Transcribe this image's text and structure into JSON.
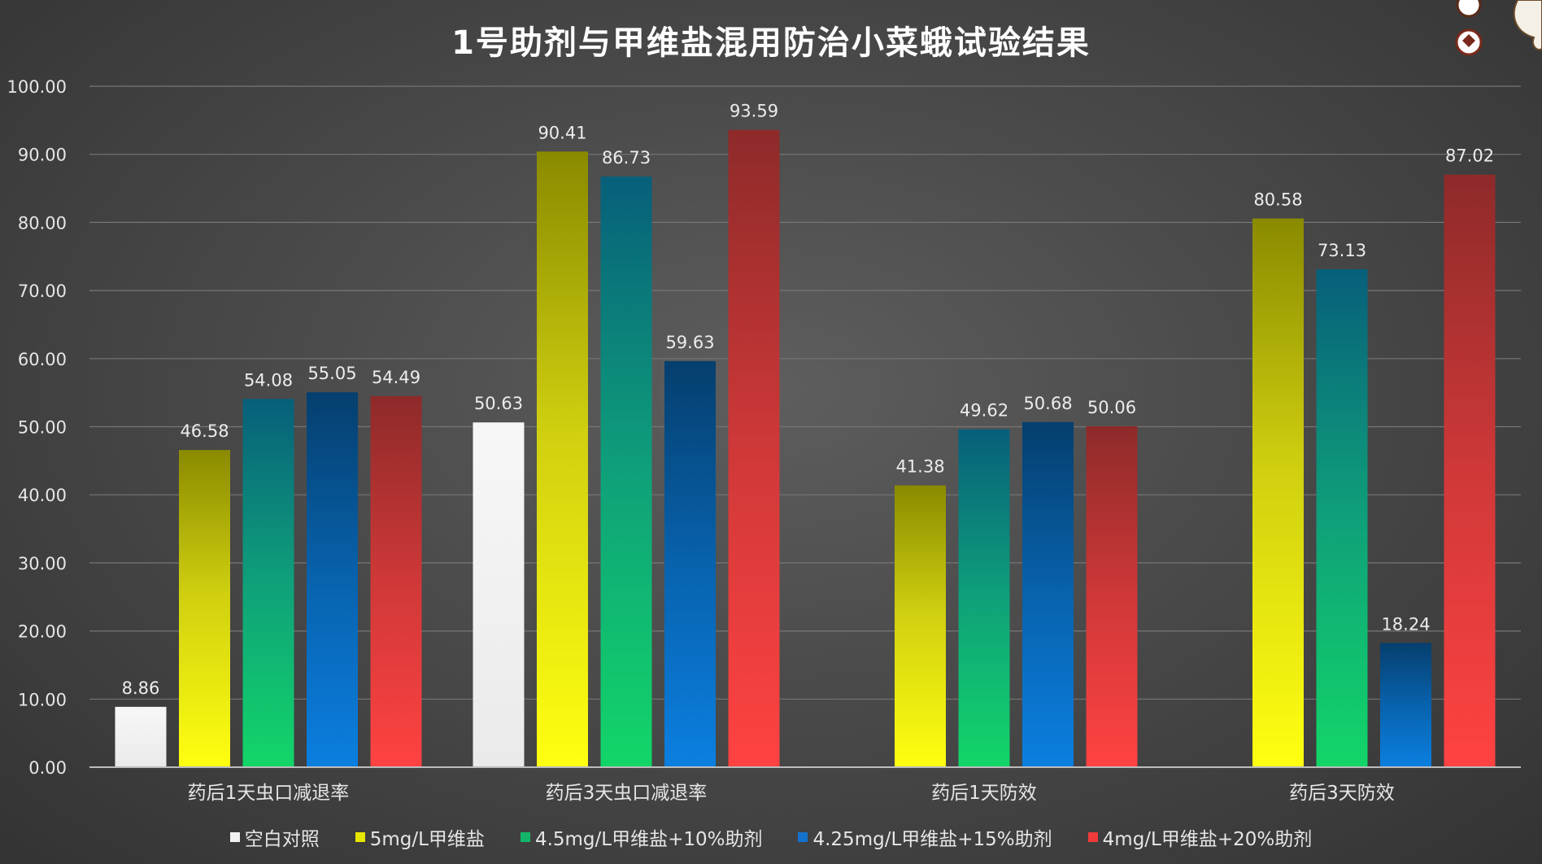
{
  "chart_data": {
    "type": "bar",
    "title": "1号助剂与甲维盐混用防治小菜蛾试验结果",
    "xlabel": "",
    "ylabel": "",
    "ylim": [
      0,
      100
    ],
    "yticks": [
      "0.00",
      "10.00",
      "20.00",
      "30.00",
      "40.00",
      "50.00",
      "60.00",
      "70.00",
      "80.00",
      "90.00",
      "100.00"
    ],
    "grid": true,
    "legend_position": "bottom",
    "categories": [
      "药后1天虫口减退率",
      "药后3天虫口减退率",
      "药后1天防效",
      "药后3天防效"
    ],
    "series": [
      {
        "name": "空白对照",
        "color": "#f2f2f2",
        "values": [
          8.86,
          50.63,
          null,
          null
        ],
        "labels": [
          "8.86",
          "50.63",
          null,
          null
        ]
      },
      {
        "name": "5mg/L甲维盐",
        "color": "#e6e600",
        "values": [
          46.58,
          90.41,
          41.38,
          80.58
        ],
        "labels": [
          "46.58",
          "90.41",
          "41.38",
          "80.58"
        ]
      },
      {
        "name": "4.5mg/L甲维盐+10%助剂",
        "color": "#12b56a",
        "values": [
          54.08,
          86.73,
          49.62,
          73.13
        ],
        "labels": [
          "54.08",
          "86.73",
          "49.62",
          "73.13"
        ]
      },
      {
        "name": "4.25mg/L甲维盐+15%助剂",
        "color": "#1373cc",
        "values": [
          55.05,
          59.63,
          50.68,
          18.24
        ],
        "labels": [
          "55.05",
          "59.63",
          "50.68",
          "18.24"
        ]
      },
      {
        "name": "4mg/L甲维盐+20%助剂",
        "color": "#f03a3a",
        "values": [
          54.49,
          93.59,
          50.06,
          87.02
        ],
        "labels": [
          "54.49",
          "93.59",
          "50.06",
          "87.02"
        ]
      }
    ]
  }
}
